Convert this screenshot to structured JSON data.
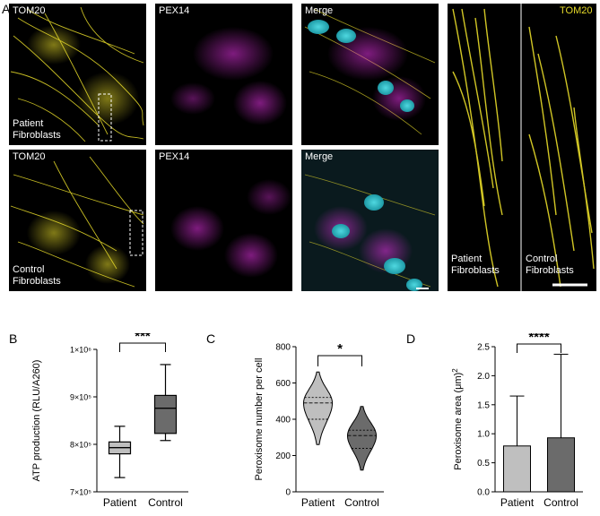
{
  "figure": {
    "panel_letters": [
      "A",
      "B",
      "C",
      "D"
    ],
    "row_patient": {
      "channels": [
        "TOM20",
        "PEX14",
        "Merge"
      ],
      "cell_label_line1": "Patient",
      "cell_label_line2": "Fibroblasts"
    },
    "row_control": {
      "channels": [
        "TOM20",
        "PEX14",
        "Merge"
      ],
      "cell_label_line1": "Control",
      "cell_label_line2": "Fibroblasts"
    },
    "zoom": {
      "channel": "TOM20",
      "left_line1": "Patient",
      "left_line2": "Fibroblasts",
      "right_line1": "Control",
      "right_line2": "Fibroblasts"
    },
    "colors": {
      "tom20": "#e8dc2a",
      "pex14": "#d22ed2",
      "nucleus": "#2fc0c8",
      "patient_fill": "#bfbfbf",
      "control_fill": "#6b6b6b"
    }
  },
  "chart_data": [
    {
      "type": "box",
      "panel": "B",
      "ylabel": "ATP production (RLU/A260)",
      "ytick_labels": [
        "7×10⁵",
        "8×10⁵",
        "9×10⁵",
        "1×10⁶"
      ],
      "yticks": [
        700000,
        800000,
        900000,
        1000000
      ],
      "ylim": [
        700000,
        1000000
      ],
      "categories": [
        "Patient",
        "Control"
      ],
      "boxes": [
        {
          "name": "Patient",
          "min": 730000,
          "q1": 780000,
          "median": 793000,
          "q3": 805000,
          "max": 838000
        },
        {
          "name": "Control",
          "min": 808000,
          "q1": 823000,
          "median": 876000,
          "q3": 903000,
          "max": 968000
        }
      ],
      "significance": "***"
    },
    {
      "type": "violin",
      "panel": "C",
      "ylabel": "Peroxisome number per cell",
      "ytick_labels": [
        "0",
        "200",
        "400",
        "600",
        "800"
      ],
      "yticks": [
        0,
        200,
        400,
        600,
        800
      ],
      "ylim": [
        0,
        800
      ],
      "categories": [
        "Patient",
        "Control"
      ],
      "violins": [
        {
          "name": "Patient",
          "min": 260,
          "max": 660,
          "q1": 400,
          "median": 490,
          "q3": 520
        },
        {
          "name": "Control",
          "min": 120,
          "max": 470,
          "q1": 240,
          "median": 310,
          "q3": 340
        }
      ],
      "significance": "*"
    },
    {
      "type": "bar",
      "panel": "D",
      "ylabel": "Peroxisome area (μm)",
      "ylabel_superscript": "2",
      "ytick_labels": [
        "0.0",
        "0.5",
        "1.0",
        "1.5",
        "2.0",
        "2.5"
      ],
      "yticks": [
        0,
        0.5,
        1.0,
        1.5,
        2.0,
        2.5
      ],
      "ylim": [
        0,
        2.5
      ],
      "categories": [
        "Patient",
        "Control"
      ],
      "values": [
        0.79,
        0.93
      ],
      "error_upper": [
        1.65,
        2.37
      ],
      "significance": "****"
    }
  ]
}
